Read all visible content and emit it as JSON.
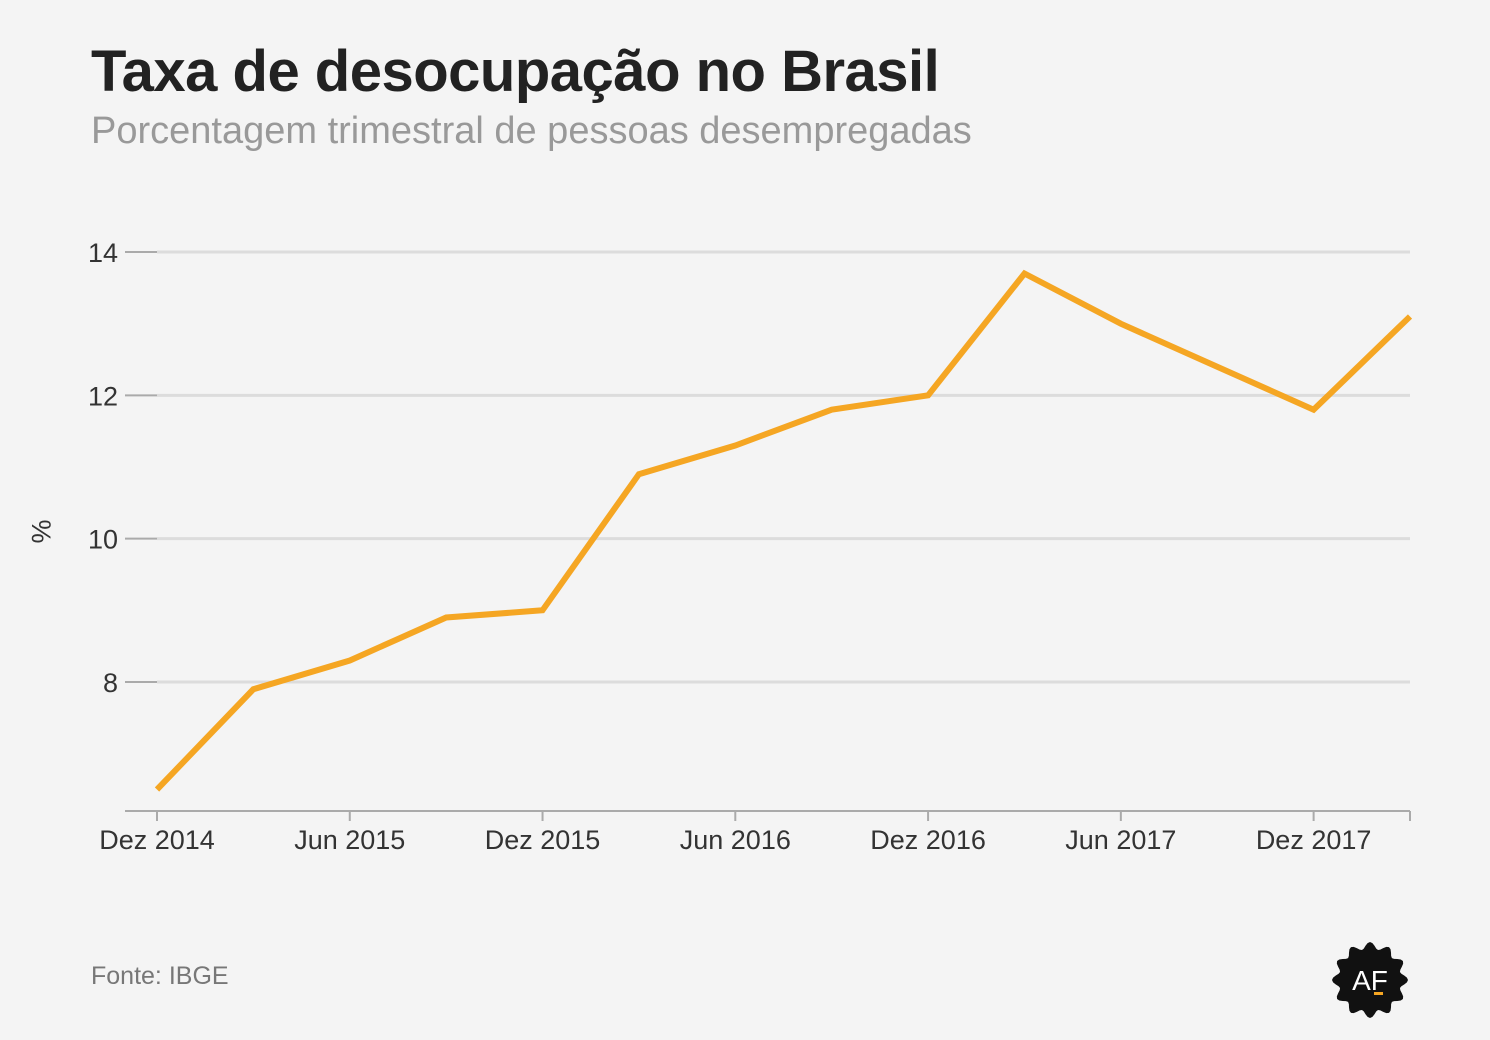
{
  "title": "Taxa de desocupação no Brasil",
  "subtitle": "Porcentagem trimestral de pessoas desempregadas",
  "source": "Fonte: IBGE",
  "logo_text": "AF",
  "colors": {
    "line": "#f5a623",
    "grid": "#dcdcdc",
    "axis": "#aaaaaa",
    "background": "#f4f4f4"
  },
  "chart_data": {
    "type": "line",
    "ylabel": "%",
    "xlabel": "",
    "x": [
      "Dez 2014",
      "Mar 2015",
      "Jun 2015",
      "Set 2015",
      "Dez 2015",
      "Mar 2016",
      "Jun 2016",
      "Set 2016",
      "Dez 2016",
      "Mar 2017",
      "Jun 2017",
      "Set 2017",
      "Dez 2017",
      "Mar 2018"
    ],
    "x_tick_labels": [
      "Dez 2014",
      "Jun 2015",
      "Dez 2015",
      "Jun 2016",
      "Dez 2016",
      "Jun 2017",
      "Dez 2017"
    ],
    "y_ticks": [
      8,
      10,
      12,
      14
    ],
    "ylim": [
      6.2,
      14
    ],
    "series": [
      {
        "values": [
          6.5,
          7.9,
          8.3,
          8.9,
          9.0,
          10.9,
          11.3,
          11.8,
          12.0,
          13.7,
          13.0,
          12.4,
          11.8,
          13.1
        ]
      }
    ],
    "grid": true,
    "legend": "none"
  }
}
